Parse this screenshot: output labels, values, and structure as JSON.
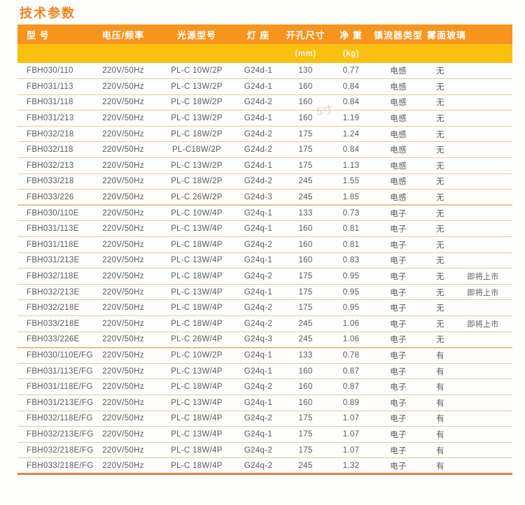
{
  "page_title": "技术参数",
  "watermark": "5寸",
  "colors": {
    "header_bg": "#F7941E",
    "subheader_bg": "#FBBF10",
    "title": "#EF8320",
    "row_line": "#E9CBA4",
    "group_line": "#E2C09A",
    "bottom_line": "#E2823E",
    "text": "#5A5B5E"
  },
  "table": {
    "columns": [
      {
        "key": "model",
        "label": "型 号",
        "unit": ""
      },
      {
        "key": "voltage",
        "label": "电压/频率",
        "unit": ""
      },
      {
        "key": "source",
        "label": "光源型号",
        "unit": ""
      },
      {
        "key": "holder",
        "label": "灯 座",
        "unit": ""
      },
      {
        "key": "hole",
        "label": "开孔尺寸",
        "unit": "(mm)"
      },
      {
        "key": "weight",
        "label": "净 重",
        "unit": "(kg)"
      },
      {
        "key": "ballast",
        "label": "镇流器类型",
        "unit": ""
      },
      {
        "key": "glass",
        "label": "雾面玻璃",
        "unit": ""
      },
      {
        "key": "note",
        "label": "",
        "unit": ""
      }
    ],
    "rows": [
      {
        "model": "FBH030/110",
        "voltage": "220V/50Hz",
        "source": "PL-C 10W/2P",
        "holder": "G24d-1",
        "hole": "130",
        "weight": "0.77",
        "ballast": "电感",
        "glass": "无",
        "note": ""
      },
      {
        "model": "FBH031/113",
        "voltage": "220V/50Hz",
        "source": "PL-C 13W/2P",
        "holder": "G24d-1",
        "hole": "160",
        "weight": "0.84",
        "ballast": "电感",
        "glass": "无",
        "note": ""
      },
      {
        "model": "FBH031/118",
        "voltage": "220V/50Hz",
        "source": "PL-C 18W/2P",
        "holder": "G24d-2",
        "hole": "160",
        "weight": "0.84",
        "ballast": "电感",
        "glass": "无",
        "note": ""
      },
      {
        "model": "FBH031/213",
        "voltage": "220V/50Hz",
        "source": "PL-C 13W/2P",
        "holder": "G24d-1",
        "hole": "160",
        "weight": "1.19",
        "ballast": "电感",
        "glass": "无",
        "note": ""
      },
      {
        "model": "FBH032/218",
        "voltage": "220V/50Hz",
        "source": "PL-C 18W/2P",
        "holder": "G24d-2",
        "hole": "175",
        "weight": "1.24",
        "ballast": "电感",
        "glass": "无",
        "note": ""
      },
      {
        "model": "FBH032/118",
        "voltage": "220V/50Hz",
        "source": "PL-C18W/2P",
        "holder": "G24d-2",
        "hole": "175",
        "weight": "0.84",
        "ballast": "电感",
        "glass": "无",
        "note": ""
      },
      {
        "model": "FBH032/213",
        "voltage": "220V/50Hz",
        "source": "PL-C 13W/2P",
        "holder": "G24d-1",
        "hole": "175",
        "weight": "1.13",
        "ballast": "电感",
        "glass": "无",
        "note": ""
      },
      {
        "model": "FBH033/218",
        "voltage": "220V/50Hz",
        "source": "PL-C 18W/2P",
        "holder": "G24d-2",
        "hole": "245",
        "weight": "1.55",
        "ballast": "电感",
        "glass": "无",
        "note": ""
      },
      {
        "model": "FBH033/226",
        "voltage": "220V/50Hz",
        "source": "PL-C 26W/2P",
        "holder": "G24d-3",
        "hole": "245",
        "weight": "1.85",
        "ballast": "电感",
        "glass": "无",
        "note": "",
        "group_end": true
      },
      {
        "model": "FBH030/110E",
        "voltage": "220V/50Hz",
        "source": "PL-C 10W/4P",
        "holder": "G24q-1",
        "hole": "133",
        "weight": "0.73",
        "ballast": "电子",
        "glass": "无",
        "note": ""
      },
      {
        "model": "FBH031/113E",
        "voltage": "220V/50Hz",
        "source": "PL-C 13W/4P",
        "holder": "G24q-1",
        "hole": "160",
        "weight": "0.81",
        "ballast": "电子",
        "glass": "无",
        "note": ""
      },
      {
        "model": "FBH031/118E",
        "voltage": "220V/50Hz",
        "source": "PL-C 18W/4P",
        "holder": "G24q-2",
        "hole": "160",
        "weight": "0.81",
        "ballast": "电子",
        "glass": "无",
        "note": ""
      },
      {
        "model": "FBH031/213E",
        "voltage": "220V/50Hz",
        "source": "PL-C 13W/4P",
        "holder": "G24q-1",
        "hole": "160",
        "weight": "0.83",
        "ballast": "电子",
        "glass": "无",
        "note": ""
      },
      {
        "model": "FBH032/118E",
        "voltage": "220V/50Hz",
        "source": "PL-C 18W/4P",
        "holder": "G24q-2",
        "hole": "175",
        "weight": "0.95",
        "ballast": "电子",
        "glass": "无",
        "note": "即将上市"
      },
      {
        "model": "FBH032/213E",
        "voltage": "220V/50Hz",
        "source": "PL-C 13W/4P",
        "holder": "G24q-1",
        "hole": "175",
        "weight": "0.95",
        "ballast": "电子",
        "glass": "无",
        "note": "即将上市"
      },
      {
        "model": "FBH032/218E",
        "voltage": "220V/50Hz",
        "source": "PL-C 18W/4P",
        "holder": "G24q-2",
        "hole": "175",
        "weight": "0.95",
        "ballast": "电子",
        "glass": "无",
        "note": ""
      },
      {
        "model": "FBH033/218E",
        "voltage": "220V/50Hz",
        "source": "PL-C 18W/4P",
        "holder": "G24q-2",
        "hole": "245",
        "weight": "1.06",
        "ballast": "电子",
        "glass": "无",
        "note": "即将上市"
      },
      {
        "model": "FBH033/226E",
        "voltage": "220V/50Hz",
        "source": "PL-C 26W/4P",
        "holder": "G24q-3",
        "hole": "245",
        "weight": "1.06",
        "ballast": "电子",
        "glass": "无",
        "note": "",
        "group_end": true
      },
      {
        "model": "FBH030/110E/FG",
        "voltage": "220V/50Hz",
        "source": "PL-C 10W/2P",
        "holder": "G24q-1",
        "hole": "133",
        "weight": "0.78",
        "ballast": "电子",
        "glass": "有",
        "note": ""
      },
      {
        "model": "FBH031/113E/FG",
        "voltage": "220V/50Hz",
        "source": "PL-C 13W/4P",
        "holder": "G24q-1",
        "hole": "160",
        "weight": "0.87",
        "ballast": "电子",
        "glass": "有",
        "note": ""
      },
      {
        "model": "FBH031/118E/FG",
        "voltage": "220V/50Hz",
        "source": "PL-C 18W/4P",
        "holder": "G24q-2",
        "hole": "160",
        "weight": "0.87",
        "ballast": "电子",
        "glass": "有",
        "note": ""
      },
      {
        "model": "FBH031/213E/FG",
        "voltage": "220V/50Hz",
        "source": "PL-C 13W/4P",
        "holder": "G24q-1",
        "hole": "160",
        "weight": "0.89",
        "ballast": "电子",
        "glass": "有",
        "note": ""
      },
      {
        "model": "FBH032/118E/FG",
        "voltage": "220V/50Hz",
        "source": "PL-C 18W/4P",
        "holder": "G24q-2",
        "hole": "175",
        "weight": "1.07",
        "ballast": "电子",
        "glass": "有",
        "note": ""
      },
      {
        "model": "FBH032/213E/FG",
        "voltage": "220V/50Hz",
        "source": "PL-C 13W/4P",
        "holder": "G24q-1",
        "hole": "175",
        "weight": "1.07",
        "ballast": "电子",
        "glass": "有",
        "note": ""
      },
      {
        "model": "FBH032/218E/FG",
        "voltage": "220V/50Hz",
        "source": "PL-C 18W/4P",
        "holder": "G24q-2",
        "hole": "175",
        "weight": "1.07",
        "ballast": "电子",
        "glass": "有",
        "note": ""
      },
      {
        "model": "FBH033/218E/FG",
        "voltage": "220V/50Hz",
        "source": "PL-C 18W/4P",
        "holder": "G24q-2",
        "hole": "245",
        "weight": "1.32",
        "ballast": "电子",
        "glass": "有",
        "note": ""
      }
    ]
  }
}
